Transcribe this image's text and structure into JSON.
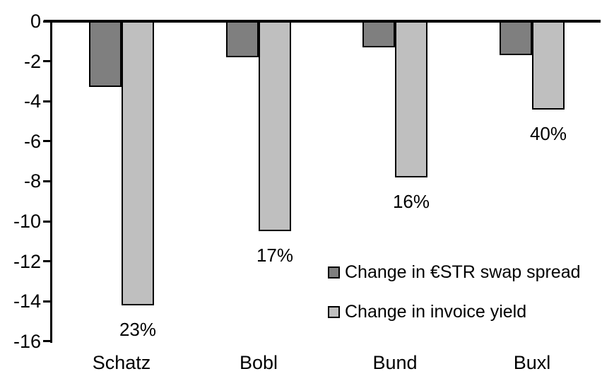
{
  "chart_data": {
    "type": "bar",
    "title": "",
    "categories": [
      "Schatz",
      "Bobl",
      "Bund",
      "Buxl"
    ],
    "series": [
      {
        "name": "Change in €STR swap spread",
        "color": "#7F7F7F",
        "values": [
          -3.3,
          -1.8,
          -1.3,
          -1.7
        ]
      },
      {
        "name": "Change in invoice yield",
        "color": "#BFBFBF",
        "values": [
          -14.2,
          -10.5,
          -7.8,
          -4.4
        ],
        "data_labels": [
          "23%",
          "17%",
          "16%",
          "40%"
        ]
      }
    ],
    "yticks": [
      0,
      -2,
      -4,
      -6,
      -8,
      -10,
      -12,
      -14,
      -16
    ],
    "ylim": [
      -16,
      0
    ],
    "xlabel": "",
    "ylabel": "",
    "grid": false,
    "legend_position": "inside-right-middle",
    "bar_border_color": "#000000",
    "axis_color": "#000000",
    "background_color": "#FFFFFF"
  }
}
